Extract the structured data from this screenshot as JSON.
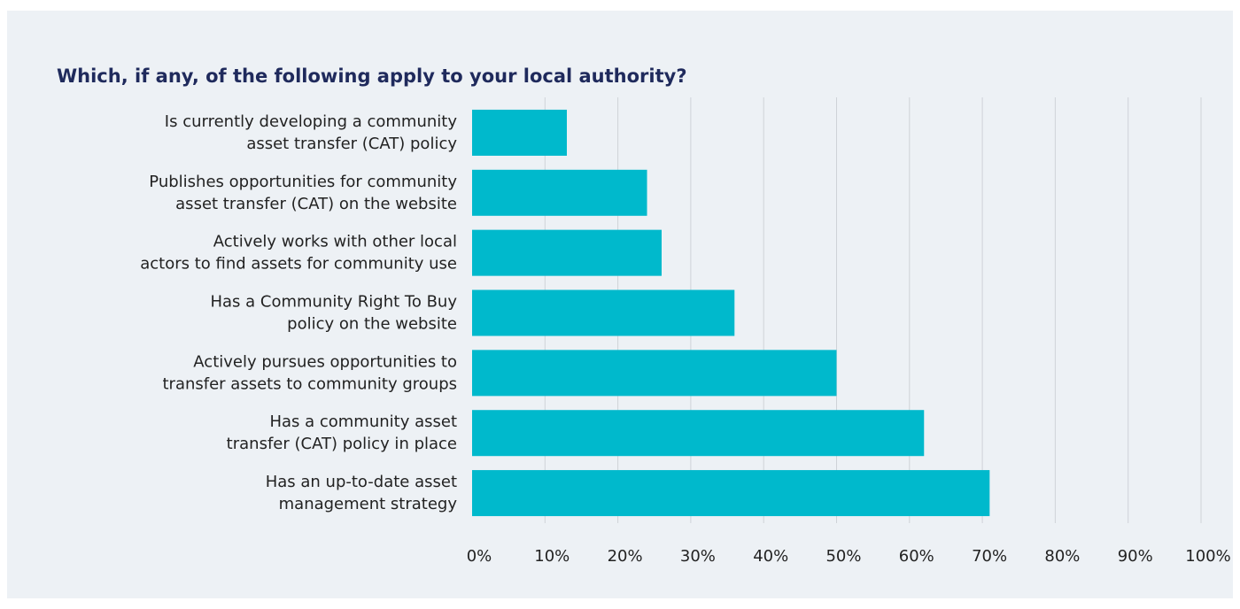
{
  "chart_data": {
    "type": "barh",
    "title": "Which, if any, of the following apply to your local authority?",
    "categories": [
      [
        "Is currently developing a community",
        "asset transfer (CAT) policy"
      ],
      [
        "Publishes opportunities for community",
        "asset transfer (CAT) on the website"
      ],
      [
        "Actively works with other local",
        "actors to find assets for community use"
      ],
      [
        "Has a Community Right To Buy",
        "policy on the website"
      ],
      [
        "Actively pursues opportunities to",
        "transfer assets to community groups"
      ],
      [
        "Has a community asset",
        "transfer (CAT) policy in place"
      ],
      [
        "Has an up-to-date asset",
        "management strategy"
      ]
    ],
    "values": [
      13,
      24,
      26,
      36,
      50,
      62,
      71
    ],
    "color": "#00b9cc",
    "xlim": [
      0,
      100
    ],
    "xticks": [
      {
        "value": 0,
        "label": "0%"
      },
      {
        "value": 10,
        "label": "10%"
      },
      {
        "value": 20,
        "label": "20%"
      },
      {
        "value": 30,
        "label": "30%"
      },
      {
        "value": 40,
        "label": "40%"
      },
      {
        "value": 50,
        "label": "50%"
      },
      {
        "value": 60,
        "label": "60%"
      },
      {
        "value": 70,
        "label": "70%"
      },
      {
        "value": 80,
        "label": "80%"
      },
      {
        "value": 90,
        "label": "90%"
      },
      {
        "value": 100,
        "label": "100%"
      }
    ],
    "grid": true
  }
}
